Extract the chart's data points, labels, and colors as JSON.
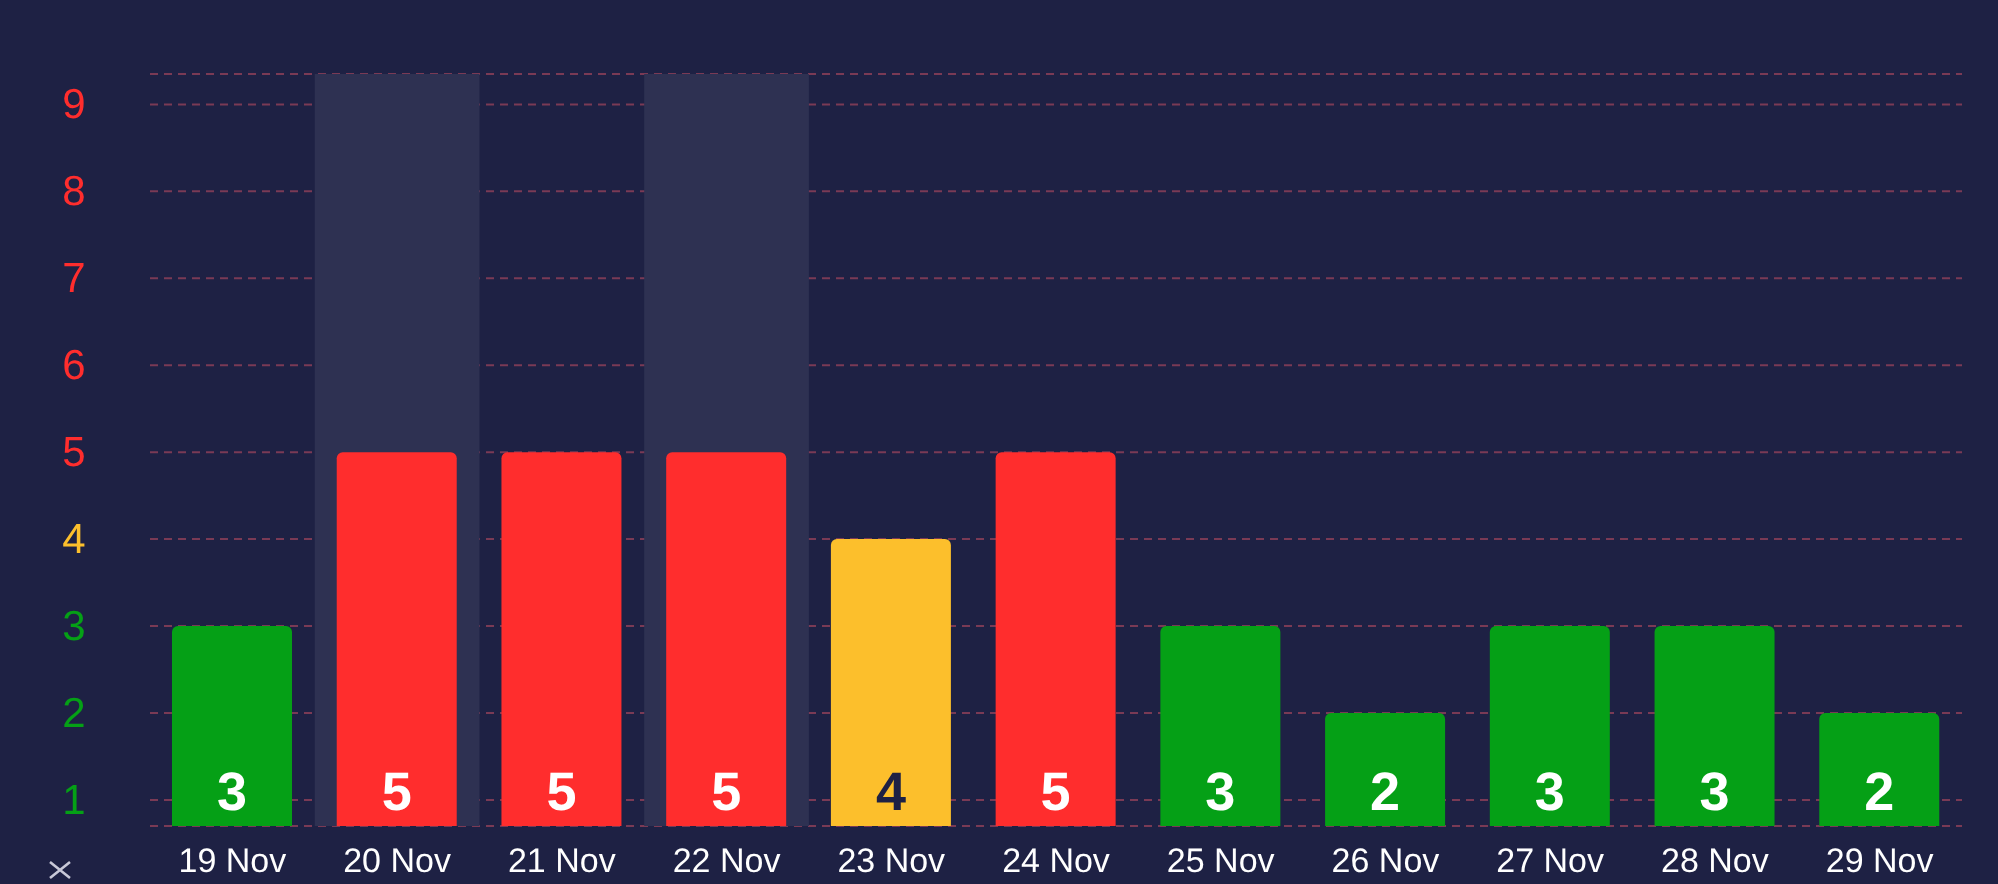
{
  "chart_data": {
    "type": "bar",
    "categories": [
      "19 Nov",
      "20 Nov",
      "21 Nov",
      "22 Nov",
      "23 Nov",
      "24 Nov",
      "25 Nov",
      "26 Nov",
      "27 Nov",
      "28 Nov",
      "29 Nov"
    ],
    "values": [
      3,
      5,
      5,
      5,
      4,
      5,
      3,
      2,
      3,
      3,
      2
    ],
    "colors": [
      "#05a016",
      "#ff2d2d",
      "#ff2d2d",
      "#ff2d2d",
      "#fcbf2c",
      "#ff2d2d",
      "#05a016",
      "#05a016",
      "#05a016",
      "#05a016",
      "#05a016"
    ],
    "ylim": [
      0.7,
      9.35
    ],
    "yticks": [
      1,
      2,
      3,
      4,
      5,
      6,
      7,
      8,
      9
    ],
    "grid": "y",
    "data_labels": true,
    "legend": false,
    "bands": [
      {
        "axis": "x",
        "from": "20 Nov",
        "to": "20 Nov",
        "color": "#2e3152"
      },
      {
        "axis": "x",
        "from": "22 Nov",
        "to": "22 Nov",
        "color": "#2e3152"
      }
    ]
  }
}
